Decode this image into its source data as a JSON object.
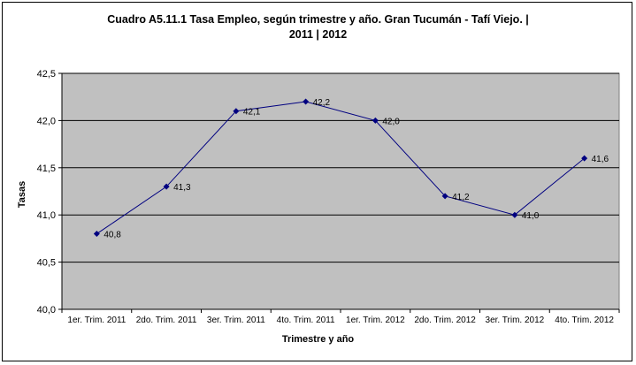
{
  "chart_data": {
    "type": "line",
    "title_line1": "Cuadro A5.11.1 Tasa Empleo, según trimestre y año. Gran Tucumán - Tafí Viejo. |",
    "title_line2": "2011 | 2012",
    "xlabel": "Trimestre y año",
    "ylabel": "Tasas",
    "categories": [
      "1er. Trim. 2011",
      "2do. Trim. 2011",
      "3er. Trim. 2011",
      "4to. Trim. 2011",
      "1er. Trim. 2012",
      "2do. Trim. 2012",
      "3er. Trim. 2012",
      "4to. Trim. 2012"
    ],
    "values": [
      40.8,
      41.3,
      42.1,
      42.2,
      42.0,
      41.2,
      41.0,
      41.6
    ],
    "data_labels": [
      "40,8",
      "41,3",
      "42,1",
      "42,2",
      "42,0",
      "41,2",
      "41,0",
      "41,6"
    ],
    "ylim": [
      40.0,
      42.5
    ],
    "yticks": [
      40.0,
      40.5,
      41.0,
      41.5,
      42.0,
      42.5
    ],
    "ytick_labels": [
      "40,0",
      "40,5",
      "41,0",
      "41,5",
      "42,0",
      "42,5"
    ],
    "grid": true,
    "colors": {
      "plot_background": "#c0c0c0",
      "series": "#000080",
      "gridline": "#000000"
    }
  }
}
